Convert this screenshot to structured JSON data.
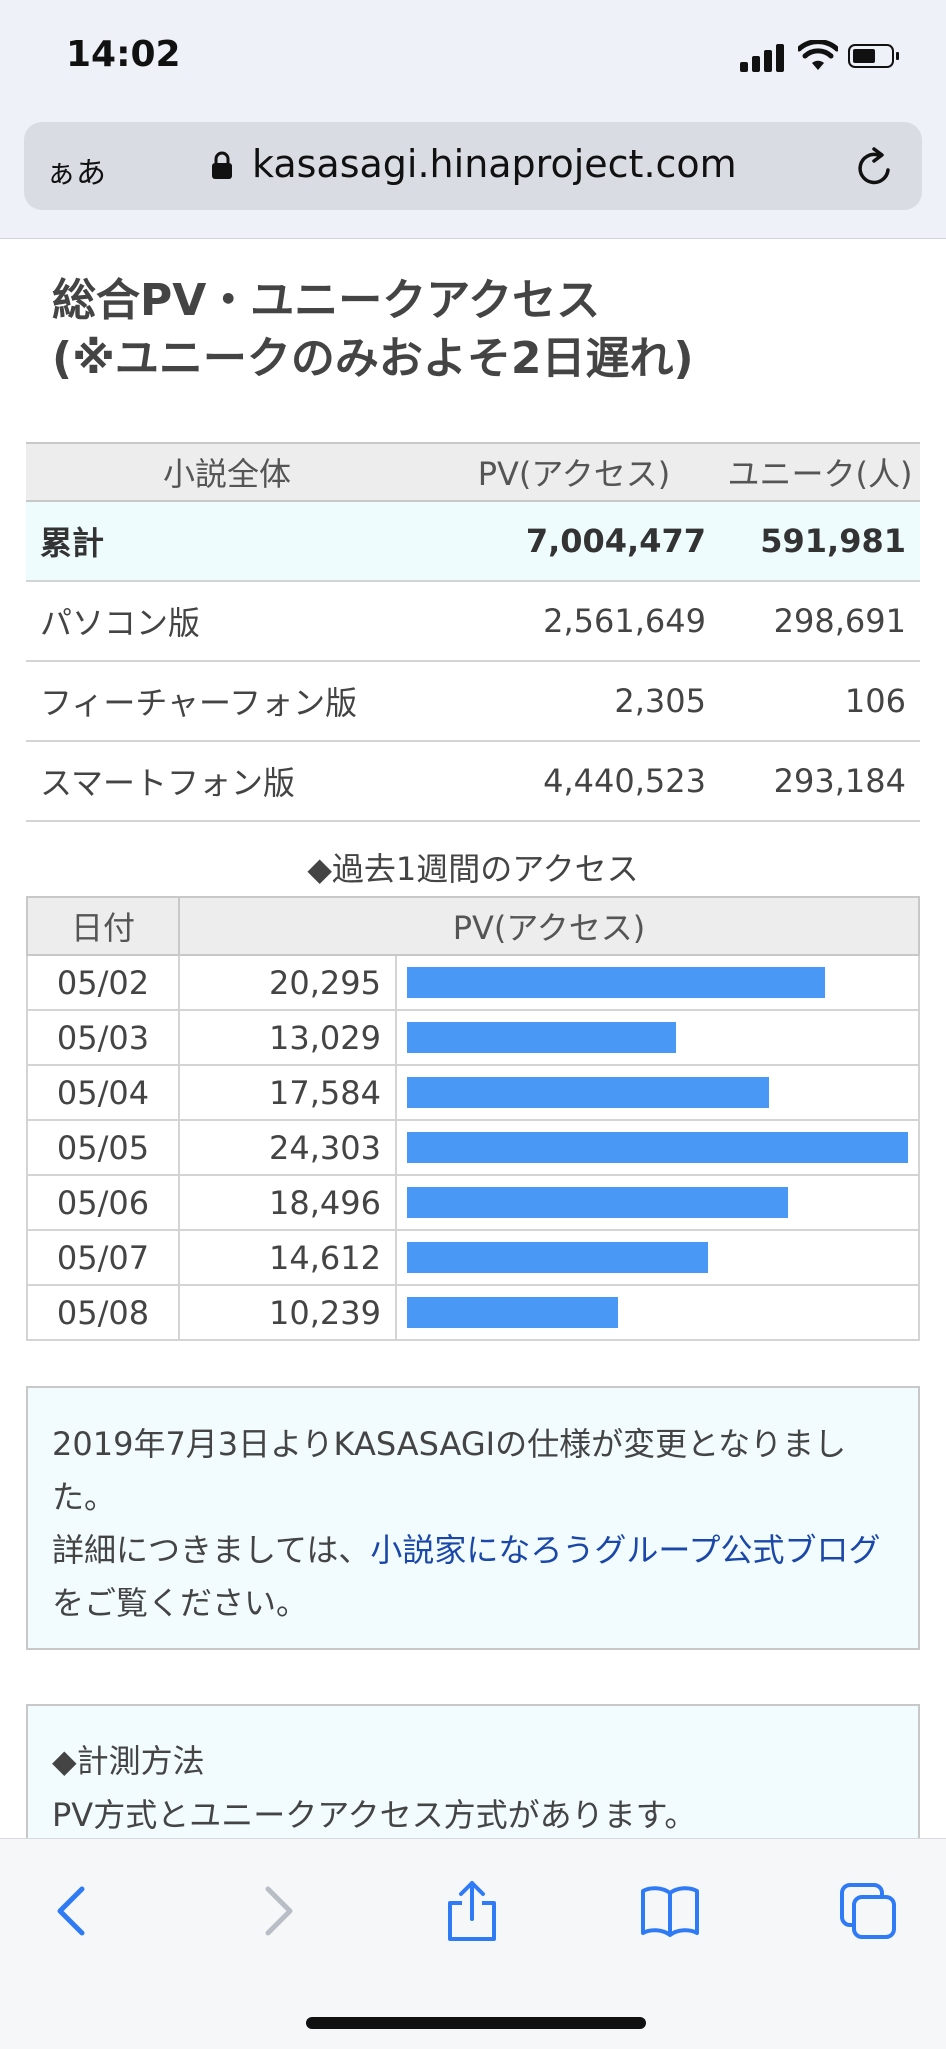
{
  "status_bar": {
    "time": "14:02"
  },
  "browser": {
    "text_size_label": "ぁあ",
    "url": "kasasagi.hinaproject.com"
  },
  "page": {
    "title_line1": "総合PV・ユニークアクセス",
    "title_line2": "(※ユニークのみおよそ2日遅れ)"
  },
  "summary": {
    "headers": [
      "小説全体",
      "PV(アクセス)",
      "ユニーク(人)"
    ],
    "rows": [
      {
        "label": "累計",
        "pv": "7,004,477",
        "unique": "591,981"
      },
      {
        "label": "パソコン版",
        "pv": "2,561,649",
        "unique": "298,691"
      },
      {
        "label": "フィーチャーフォン版",
        "pv": "2,305",
        "unique": "106"
      },
      {
        "label": "スマートフォン版",
        "pv": "4,440,523",
        "unique": "293,184"
      }
    ]
  },
  "weekly": {
    "caption": "◆過去1週間のアクセス",
    "headers": [
      "日付",
      "PV(アクセス)"
    ],
    "rows": [
      {
        "date": "05/02",
        "pv": "20,295",
        "value": 20295
      },
      {
        "date": "05/03",
        "pv": "13,029",
        "value": 13029
      },
      {
        "date": "05/04",
        "pv": "17,584",
        "value": 17584
      },
      {
        "date": "05/05",
        "pv": "24,303",
        "value": 24303
      },
      {
        "date": "05/06",
        "pv": "18,496",
        "value": 18496
      },
      {
        "date": "05/07",
        "pv": "14,612",
        "value": 14612
      },
      {
        "date": "05/08",
        "pv": "10,239",
        "value": 10239
      }
    ],
    "bar_color": "#4a98f5"
  },
  "notice": {
    "line1": "2019年7月3日よりKASASAGIの仕様が変更となりました。",
    "line2_prefix": "詳細につきましては、",
    "link_text": "小説家になろうグループ公式ブログ",
    "line2_suffix": "をご覧ください。"
  },
  "method": {
    "heading": "◆計測方法",
    "text": "PV方式とユニークアクセス方式があります。"
  },
  "toolbar": {
    "icons": [
      "back-icon",
      "forward-icon",
      "share-icon",
      "bookmarks-icon",
      "tabs-icon"
    ],
    "accent": "#2f7bf6",
    "disabled": "#b9bec6"
  }
}
